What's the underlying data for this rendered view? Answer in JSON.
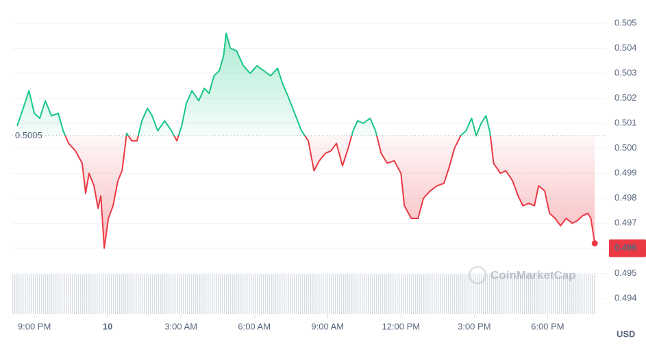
{
  "chart_data": {
    "type": "line",
    "x": [
      20.3,
      20.58,
      20.78,
      21.0,
      21.22,
      21.45,
      21.7,
      21.98,
      22.18,
      22.4,
      22.68,
      22.96,
      23.1,
      23.24,
      23.44,
      23.61,
      23.72,
      23.86,
      24.03,
      24.22,
      24.42,
      24.59,
      24.78,
      24.98,
      25.2,
      25.4,
      25.63,
      25.82,
      26.05,
      26.33,
      26.61,
      26.83,
      27.03,
      27.22,
      27.45,
      27.73,
      27.95,
      28.15,
      28.35,
      28.57,
      28.74,
      28.85,
      29.02,
      29.27,
      29.55,
      29.83,
      30.11,
      30.39,
      30.67,
      30.95,
      31.15,
      31.37,
      31.65,
      31.93,
      32.21,
      32.44,
      32.66,
      32.91,
      33.14,
      33.36,
      33.61,
      33.84,
      34.04,
      34.23,
      34.46,
      34.74,
      34.96,
      35.19,
      35.44,
      35.72,
      36.0,
      36.14,
      36.42,
      36.7,
      36.92,
      37.2,
      37.48,
      37.76,
      37.96,
      38.19,
      38.44,
      38.66,
      38.89,
      39.08,
      39.28,
      39.48,
      39.65,
      39.79,
      40.07,
      40.29,
      40.57,
      40.79,
      40.99,
      41.24,
      41.46,
      41.63,
      41.88,
      42.08,
      42.31,
      42.53,
      42.76,
      43.01,
      43.21,
      43.43,
      43.65,
      43.77,
      43.93
    ],
    "values": [
      0.5009,
      0.5017,
      0.5023,
      0.5014,
      0.5012,
      0.5019,
      0.5013,
      0.5014,
      0.5007,
      0.5002,
      0.4999,
      0.4994,
      0.4982,
      0.499,
      0.4985,
      0.4976,
      0.4981,
      0.496,
      0.4972,
      0.4977,
      0.4987,
      0.4991,
      0.5006,
      0.5003,
      0.5003,
      0.5011,
      0.5016,
      0.5013,
      0.5007,
      0.5011,
      0.5007,
      0.5003,
      0.5009,
      0.5018,
      0.5023,
      0.5019,
      0.5024,
      0.5022,
      0.5029,
      0.5031,
      0.5037,
      0.5046,
      0.504,
      0.5039,
      0.5033,
      0.503,
      0.5033,
      0.5031,
      0.5029,
      0.5032,
      0.5026,
      0.5021,
      0.5014,
      0.5007,
      0.5003,
      0.4991,
      0.4995,
      0.4998,
      0.4999,
      0.5002,
      0.4993,
      0.5,
      0.5007,
      0.5011,
      0.501,
      0.5012,
      0.5007,
      0.4998,
      0.4994,
      0.4995,
      0.499,
      0.4977,
      0.4972,
      0.4972,
      0.498,
      0.4983,
      0.4985,
      0.4986,
      0.4992,
      0.5,
      0.5005,
      0.5007,
      0.5012,
      0.5005,
      0.501,
      0.5013,
      0.5006,
      0.4994,
      0.499,
      0.4991,
      0.4987,
      0.4981,
      0.4977,
      0.4978,
      0.4977,
      0.4985,
      0.4983,
      0.4974,
      0.4972,
      0.4969,
      0.4972,
      0.497,
      0.4971,
      0.4973,
      0.4974,
      0.4972,
      0.4962
    ],
    "up_color": "#16c784",
    "down_color": "#ea3943",
    "baseline": 0.5005,
    "last_price": 0.496,
    "xlim": [
      20.1,
      44.4
    ],
    "ylim": [
      0.49334,
      0.50593
    ],
    "xticks": [
      {
        "value": 21,
        "label": "9:00 PM"
      },
      {
        "value": 24,
        "label": "10"
      },
      {
        "value": 27,
        "label": "3:00 AM"
      },
      {
        "value": 30,
        "label": "6:00 AM"
      },
      {
        "value": 33,
        "label": "9:00 AM"
      },
      {
        "value": 36,
        "label": "12:00 PM"
      },
      {
        "value": 39,
        "label": "3:00 PM"
      },
      {
        "value": 42,
        "label": "6:00 PM"
      }
    ],
    "yticks": [
      0.494,
      0.495,
      0.496,
      0.497,
      0.498,
      0.499,
      {
        "value": 0.5,
        "label": "0.500"
      },
      0.501,
      0.502,
      0.503,
      0.504,
      0.505
    ],
    "currency": "USD",
    "watermark": "CoinMarketCap",
    "grid": true
  }
}
